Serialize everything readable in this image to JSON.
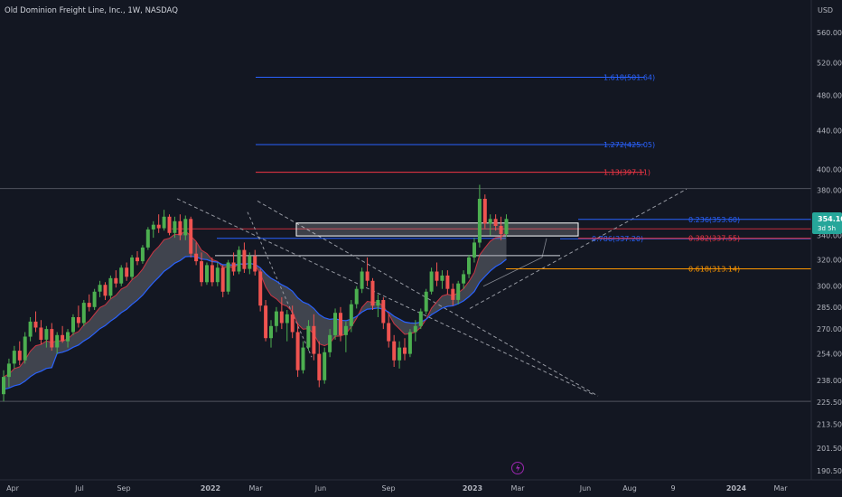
{
  "header": {
    "symbol_title": "Old Dominion Freight Line, Inc., 1W, NASDAQ",
    "currency": "USD"
  },
  "price_badge": {
    "price": "354.10",
    "countdown": "3d 5h",
    "color": "#26a69a"
  },
  "colors": {
    "background": "#131722",
    "bull": "#4caf50",
    "bear": "#ef5350",
    "fib_blue": "#2962ff",
    "fib_red": "#f23645",
    "fib_orange": "#ff9800",
    "band_fill": "#9598a1",
    "band_blue": "#2962ff",
    "band_red": "#f23645"
  },
  "chart_data": {
    "type": "candlestick",
    "title": "Old Dominion Freight Line, Inc., 1W, NASDAQ",
    "y_axis": {
      "scale": "log",
      "range": [
        188,
        590
      ],
      "ticks": [
        560.0,
        520.0,
        480.0,
        440.0,
        400.0,
        380.0,
        340.0,
        320.0,
        300.0,
        285.0,
        270.0,
        254.0,
        238.0,
        225.5,
        213.5,
        201.5,
        190.5
      ],
      "labels": [
        "560.00",
        "520.00",
        "480.00",
        "440.00",
        "400.00",
        "380.00",
        "340.00",
        "320.00",
        "300.00",
        "285.00",
        "270.00",
        "254.00",
        "238.00",
        "225.50",
        "213.50",
        "201.50",
        "190.50"
      ]
    },
    "x_axis": {
      "labels": [
        "Apr",
        "Jul",
        "Sep",
        "2022",
        "Mar",
        "Jun",
        "Sep",
        "2023",
        "Mar",
        "Jun",
        "Aug",
        "9",
        "2024",
        "Mar"
      ],
      "bold_labels": [
        "2022",
        "2023",
        "2024"
      ],
      "grid": false
    },
    "fib_levels": [
      {
        "label": "1.618(501.64)",
        "price": 501.64,
        "color": "#2962ff"
      },
      {
        "label": "1.272(425.05)",
        "price": 425.05,
        "color": "#2962ff"
      },
      {
        "label": "1.13(397.11)",
        "price": 397.11,
        "color": "#f23645"
      },
      {
        "label": "0.236(353.60)",
        "price": 353.6,
        "color": "#2962ff"
      },
      {
        "label": "0.786(337.20)",
        "price": 337.2,
        "color": "#2962ff"
      },
      {
        "label": "0.382(337.55)",
        "price": 337.55,
        "color": "#f23645"
      },
      {
        "label": "0.618(313.14)",
        "price": 313.14,
        "color": "#ff9800"
      }
    ],
    "horizontal_levels": [
      381.5,
      226.0
    ],
    "rectangles": [
      {
        "top": 350.5,
        "bottom": 339.5,
        "color": "#ffffff"
      }
    ],
    "candles": [
      {
        "o": 230,
        "h": 244,
        "l": 226,
        "c": 240
      },
      {
        "o": 240,
        "h": 251,
        "l": 234,
        "c": 248
      },
      {
        "o": 248,
        "h": 259,
        "l": 245,
        "c": 256
      },
      {
        "o": 256,
        "h": 262,
        "l": 247,
        "c": 250
      },
      {
        "o": 250,
        "h": 268,
        "l": 248,
        "c": 265
      },
      {
        "o": 265,
        "h": 278,
        "l": 262,
        "c": 275
      },
      {
        "o": 275,
        "h": 282,
        "l": 268,
        "c": 271
      },
      {
        "o": 271,
        "h": 276,
        "l": 260,
        "c": 263
      },
      {
        "o": 263,
        "h": 272,
        "l": 258,
        "c": 270
      },
      {
        "o": 270,
        "h": 274,
        "l": 256,
        "c": 258
      },
      {
        "o": 258,
        "h": 268,
        "l": 254,
        "c": 266
      },
      {
        "o": 266,
        "h": 272,
        "l": 261,
        "c": 262
      },
      {
        "o": 262,
        "h": 270,
        "l": 258,
        "c": 268
      },
      {
        "o": 268,
        "h": 280,
        "l": 266,
        "c": 278
      },
      {
        "o": 278,
        "h": 286,
        "l": 271,
        "c": 274
      },
      {
        "o": 274,
        "h": 290,
        "l": 272,
        "c": 288
      },
      {
        "o": 288,
        "h": 294,
        "l": 282,
        "c": 285
      },
      {
        "o": 285,
        "h": 298,
        "l": 283,
        "c": 296
      },
      {
        "o": 296,
        "h": 304,
        "l": 292,
        "c": 301
      },
      {
        "o": 301,
        "h": 303,
        "l": 290,
        "c": 293
      },
      {
        "o": 293,
        "h": 308,
        "l": 291,
        "c": 306
      },
      {
        "o": 306,
        "h": 312,
        "l": 299,
        "c": 302
      },
      {
        "o": 302,
        "h": 316,
        "l": 300,
        "c": 314
      },
      {
        "o": 314,
        "h": 318,
        "l": 304,
        "c": 307
      },
      {
        "o": 307,
        "h": 324,
        "l": 305,
        "c": 322
      },
      {
        "o": 322,
        "h": 327,
        "l": 316,
        "c": 319
      },
      {
        "o": 319,
        "h": 332,
        "l": 317,
        "c": 330
      },
      {
        "o": 330,
        "h": 347,
        "l": 328,
        "c": 345
      },
      {
        "o": 345,
        "h": 352,
        "l": 338,
        "c": 349
      },
      {
        "o": 349,
        "h": 358,
        "l": 342,
        "c": 346
      },
      {
        "o": 346,
        "h": 362,
        "l": 344,
        "c": 356
      },
      {
        "o": 356,
        "h": 358,
        "l": 340,
        "c": 342
      },
      {
        "o": 342,
        "h": 356,
        "l": 338,
        "c": 352
      },
      {
        "o": 352,
        "h": 358,
        "l": 336,
        "c": 340
      },
      {
        "o": 340,
        "h": 357,
        "l": 336,
        "c": 354
      },
      {
        "o": 354,
        "h": 356,
        "l": 322,
        "c": 325
      },
      {
        "o": 325,
        "h": 334,
        "l": 316,
        "c": 319
      },
      {
        "o": 319,
        "h": 326,
        "l": 300,
        "c": 303
      },
      {
        "o": 303,
        "h": 318,
        "l": 301,
        "c": 316
      },
      {
        "o": 316,
        "h": 322,
        "l": 300,
        "c": 303
      },
      {
        "o": 303,
        "h": 318,
        "l": 300,
        "c": 314
      },
      {
        "o": 314,
        "h": 316,
        "l": 292,
        "c": 296
      },
      {
        "o": 296,
        "h": 320,
        "l": 294,
        "c": 318
      },
      {
        "o": 318,
        "h": 326,
        "l": 308,
        "c": 311
      },
      {
        "o": 311,
        "h": 331,
        "l": 309,
        "c": 328
      },
      {
        "o": 328,
        "h": 334,
        "l": 310,
        "c": 313
      },
      {
        "o": 313,
        "h": 326,
        "l": 309,
        "c": 323
      },
      {
        "o": 323,
        "h": 328,
        "l": 308,
        "c": 311
      },
      {
        "o": 311,
        "h": 313,
        "l": 282,
        "c": 286
      },
      {
        "o": 286,
        "h": 290,
        "l": 262,
        "c": 264
      },
      {
        "o": 264,
        "h": 276,
        "l": 258,
        "c": 272
      },
      {
        "o": 272,
        "h": 285,
        "l": 268,
        "c": 282
      },
      {
        "o": 282,
        "h": 292,
        "l": 270,
        "c": 274
      },
      {
        "o": 274,
        "h": 283,
        "l": 262,
        "c": 280
      },
      {
        "o": 280,
        "h": 286,
        "l": 264,
        "c": 268
      },
      {
        "o": 268,
        "h": 274,
        "l": 240,
        "c": 244
      },
      {
        "o": 244,
        "h": 262,
        "l": 242,
        "c": 258
      },
      {
        "o": 258,
        "h": 276,
        "l": 256,
        "c": 272
      },
      {
        "o": 272,
        "h": 280,
        "l": 250,
        "c": 254
      },
      {
        "o": 254,
        "h": 262,
        "l": 234,
        "c": 238
      },
      {
        "o": 238,
        "h": 258,
        "l": 236,
        "c": 255
      },
      {
        "o": 255,
        "h": 270,
        "l": 252,
        "c": 266
      },
      {
        "o": 266,
        "h": 284,
        "l": 263,
        "c": 281
      },
      {
        "o": 281,
        "h": 285,
        "l": 262,
        "c": 266
      },
      {
        "o": 266,
        "h": 275,
        "l": 255,
        "c": 272
      },
      {
        "o": 272,
        "h": 290,
        "l": 268,
        "c": 287
      },
      {
        "o": 287,
        "h": 300,
        "l": 284,
        "c": 298
      },
      {
        "o": 298,
        "h": 314,
        "l": 295,
        "c": 311
      },
      {
        "o": 311,
        "h": 322,
        "l": 300,
        "c": 304
      },
      {
        "o": 304,
        "h": 306,
        "l": 283,
        "c": 286
      },
      {
        "o": 286,
        "h": 294,
        "l": 278,
        "c": 290
      },
      {
        "o": 290,
        "h": 292,
        "l": 270,
        "c": 274
      },
      {
        "o": 274,
        "h": 280,
        "l": 258,
        "c": 262
      },
      {
        "o": 262,
        "h": 266,
        "l": 246,
        "c": 250
      },
      {
        "o": 250,
        "h": 262,
        "l": 245,
        "c": 258
      },
      {
        "o": 258,
        "h": 264,
        "l": 250,
        "c": 254
      },
      {
        "o": 254,
        "h": 270,
        "l": 252,
        "c": 268
      },
      {
        "o": 268,
        "h": 276,
        "l": 262,
        "c": 272
      },
      {
        "o": 272,
        "h": 284,
        "l": 270,
        "c": 282
      },
      {
        "o": 282,
        "h": 298,
        "l": 280,
        "c": 296
      },
      {
        "o": 296,
        "h": 314,
        "l": 294,
        "c": 311
      },
      {
        "o": 311,
        "h": 318,
        "l": 300,
        "c": 304
      },
      {
        "o": 304,
        "h": 312,
        "l": 298,
        "c": 308
      },
      {
        "o": 308,
        "h": 312,
        "l": 294,
        "c": 298
      },
      {
        "o": 298,
        "h": 302,
        "l": 286,
        "c": 290
      },
      {
        "o": 290,
        "h": 304,
        "l": 287,
        "c": 302
      },
      {
        "o": 302,
        "h": 312,
        "l": 298,
        "c": 309
      },
      {
        "o": 309,
        "h": 324,
        "l": 306,
        "c": 322
      },
      {
        "o": 322,
        "h": 338,
        "l": 318,
        "c": 334
      },
      {
        "o": 334,
        "h": 385,
        "l": 330,
        "c": 372
      },
      {
        "o": 372,
        "h": 376,
        "l": 346,
        "c": 350
      },
      {
        "o": 350,
        "h": 358,
        "l": 340,
        "c": 354
      },
      {
        "o": 354,
        "h": 358,
        "l": 344,
        "c": 348
      },
      {
        "o": 348,
        "h": 356,
        "l": 336,
        "c": 341
      },
      {
        "o": 341,
        "h": 358,
        "l": 339,
        "c": 354
      }
    ]
  }
}
